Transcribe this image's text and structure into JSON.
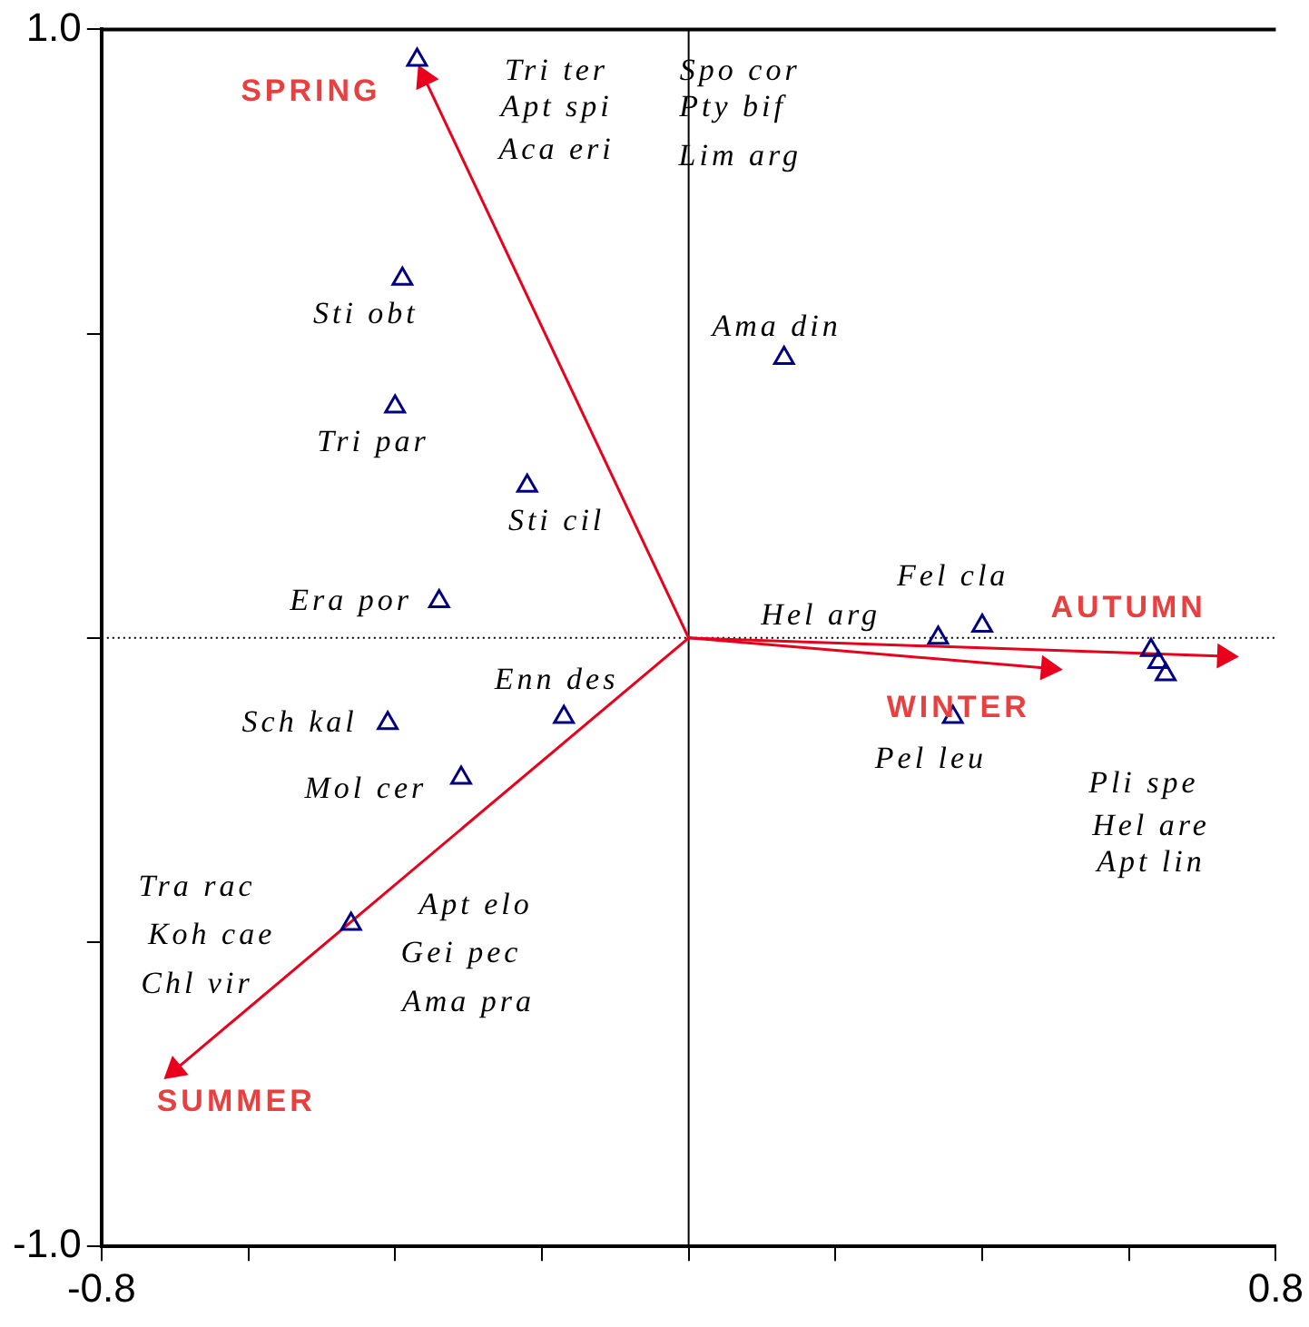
{
  "chart_data": {
    "type": "scatter",
    "xlim": [
      -0.8,
      0.8
    ],
    "ylim": [
      -1.0,
      1.0
    ],
    "xticks": [
      -0.8,
      {
        "value": -0.6,
        "label": null
      },
      {
        "value": -0.4,
        "label": null
      },
      {
        "value": -0.2,
        "label": null
      },
      {
        "value": 0,
        "label": null
      },
      {
        "value": 0.2,
        "label": null
      },
      {
        "value": 0.4,
        "label": null
      },
      {
        "value": 0.6,
        "label": null
      },
      0.8
    ],
    "yticks": [
      {
        "value": -1.0,
        "label": "-1.0"
      },
      {
        "value": -0.5,
        "label": null
      },
      {
        "value": 0,
        "label": null
      },
      {
        "value": 0.5,
        "label": null
      },
      {
        "value": 1.0,
        "label": "1.0"
      }
    ],
    "grid": false,
    "marker": "triangle",
    "series": [
      {
        "color": "#000080",
        "x": [
          -0.37,
          -0.39,
          -0.4,
          -0.22,
          -0.34,
          0.13,
          0.34,
          0.4,
          -0.41,
          -0.17,
          -0.31,
          -0.46,
          0.36,
          0.63,
          0.64,
          0.65
        ],
        "values": [
          0.95,
          0.59,
          0.38,
          0.25,
          0.06,
          0.46,
          0.0,
          0.02,
          -0.14,
          -0.13,
          -0.23,
          -0.47,
          -0.13,
          -0.02,
          -0.04,
          -0.06
        ]
      },
      {
        "type": "line",
        "name": "SPRING",
        "color": "#e8001c",
        "x": [
          0,
          -0.36
        ],
        "values": [
          0,
          0.92
        ]
      },
      {
        "type": "line",
        "name": "SUMMER",
        "color": "#e8001c",
        "x": [
          0,
          -0.7
        ],
        "values": [
          0,
          -0.71
        ]
      },
      {
        "type": "line",
        "name": "AUTUMN",
        "color": "#e8001c",
        "x": [
          0,
          0.73
        ],
        "values": [
          0,
          -0.03
        ]
      },
      {
        "type": "line",
        "name": "WINTER",
        "color": "#e8001c",
        "x": [
          0,
          0.49
        ],
        "values": [
          0,
          -0.05
        ]
      }
    ],
    "ref_lines": [
      {
        "axis": "x",
        "value": 0,
        "line_style": "solid",
        "color": "#000000"
      },
      {
        "axis": "y",
        "value": 0,
        "line_style": "dotted",
        "color": "#000000"
      }
    ],
    "annotations": [
      "Tri ter",
      "Apt spi",
      "Aca eri",
      "Spo cor",
      "Pty bif",
      "Lim arg",
      "Sti obt",
      "Tri par",
      "Sti cil",
      "Era por",
      "Ama din",
      "Fel cla",
      "Hel arg",
      "Sch kal",
      "Enn des",
      "Mol cer",
      "Tra rac",
      "Koh cae",
      "Chl vir",
      "Apt elo",
      "Gei pec",
      "Ama pra",
      "Pel leu",
      "Pli spe",
      "Hel are",
      "Apt lin"
    ]
  }
}
